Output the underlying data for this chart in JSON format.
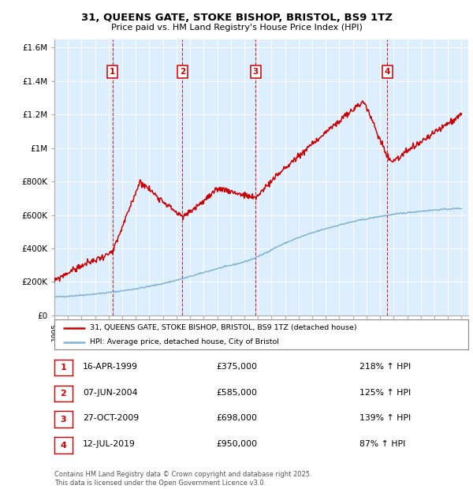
{
  "title1": "31, QUEENS GATE, STOKE BISHOP, BRISTOL, BS9 1TZ",
  "title2": "Price paid vs. HM Land Registry's House Price Index (HPI)",
  "red_color": "#cc0000",
  "blue_color": "#7fb3d3",
  "bg_color": "#ddeeff",
  "ylim": [
    0,
    1650000
  ],
  "yticks": [
    0,
    200000,
    400000,
    600000,
    800000,
    1000000,
    1200000,
    1400000,
    1600000
  ],
  "ytick_labels": [
    "£0",
    "£200K",
    "£400K",
    "£600K",
    "£800K",
    "£1M",
    "£1.2M",
    "£1.4M",
    "£1.6M"
  ],
  "sales": [
    {
      "num": 1,
      "date_str": "16-APR-1999",
      "date_year": 1999.29,
      "price": 375000,
      "hpi_pct": "218%"
    },
    {
      "num": 2,
      "date_str": "07-JUN-2004",
      "date_year": 2004.44,
      "price": 585000,
      "hpi_pct": "125%"
    },
    {
      "num": 3,
      "date_str": "27-OCT-2009",
      "date_year": 2009.82,
      "price": 698000,
      "hpi_pct": "139%"
    },
    {
      "num": 4,
      "date_str": "12-JUL-2019",
      "date_year": 2019.53,
      "price": 950000,
      "hpi_pct": "87%"
    }
  ],
  "legend_red": "31, QUEENS GATE, STOKE BISHOP, BRISTOL, BS9 1TZ (detached house)",
  "legend_blue": "HPI: Average price, detached house, City of Bristol",
  "footer": "Contains HM Land Registry data © Crown copyright and database right 2025.\nThis data is licensed under the Open Government Licence v3.0.",
  "table_rows": [
    [
      "1",
      "16-APR-1999",
      "£375,000",
      "218% ↑ HPI"
    ],
    [
      "2",
      "07-JUN-2004",
      "£585,000",
      "125% ↑ HPI"
    ],
    [
      "3",
      "27-OCT-2009",
      "£698,000",
      "139% ↑ HPI"
    ],
    [
      "4",
      "12-JUL-2019",
      "£950,000",
      "87% ↑ HPI"
    ]
  ]
}
